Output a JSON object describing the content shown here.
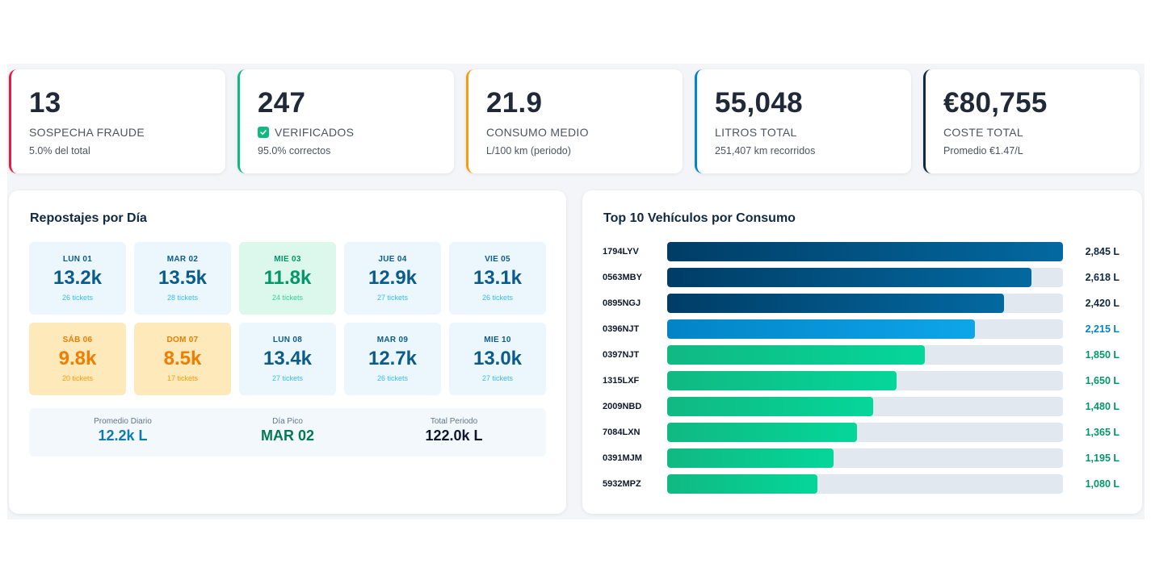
{
  "kpis": [
    {
      "value": "13",
      "label": "SOSPECHA FRAUDE",
      "sub": "5.0% del total",
      "color": "#e11d48",
      "check": false
    },
    {
      "value": "247",
      "label": "VERIFICADOS",
      "sub": "95.0% correctos",
      "color": "#10b981",
      "check": true
    },
    {
      "value": "21.9",
      "label": "CONSUMO MEDIO",
      "sub": "L/100 km (periodo)",
      "color": "#f59e0b",
      "check": false
    },
    {
      "value": "55,048",
      "label": "LITROS TOTAL",
      "sub": "251,407 km recorridos",
      "color": "#0284c7",
      "check": false
    },
    {
      "value": "€80,755",
      "label": "COSTE TOTAL",
      "sub": "Promedio €1.47/L",
      "color": "#0f2942",
      "check": false
    }
  ],
  "daily": {
    "title": "Repostajes por Día",
    "days": [
      {
        "name": "LUN 01",
        "value": "13.2k",
        "tickets": "26 tickets",
        "tone": "blue"
      },
      {
        "name": "MAR 02",
        "value": "13.5k",
        "tickets": "28 tickets",
        "tone": "blue"
      },
      {
        "name": "MIE 03",
        "value": "11.8k",
        "tickets": "24 tickets",
        "tone": "green"
      },
      {
        "name": "JUE 04",
        "value": "12.9k",
        "tickets": "27 tickets",
        "tone": "blue"
      },
      {
        "name": "VIE 05",
        "value": "13.1k",
        "tickets": "26 tickets",
        "tone": "blue"
      },
      {
        "name": "SÁB 06",
        "value": "9.8k",
        "tickets": "20 tickets",
        "tone": "orange"
      },
      {
        "name": "DOM 07",
        "value": "8.5k",
        "tickets": "17 tickets",
        "tone": "orange"
      },
      {
        "name": "LUN 08",
        "value": "13.4k",
        "tickets": "27 tickets",
        "tone": "blue"
      },
      {
        "name": "MAR 09",
        "value": "12.7k",
        "tickets": "26 tickets",
        "tone": "blue"
      },
      {
        "name": "MIE 10",
        "value": "13.0k",
        "tickets": "27 tickets",
        "tone": "blue"
      }
    ],
    "summary": [
      {
        "label": "Promedio Diario",
        "value": "12.2k L",
        "color": "#0c7bb3"
      },
      {
        "label": "Día Pico",
        "value": "MAR 02",
        "color": "#047857"
      },
      {
        "label": "Total Periodo",
        "value": "122.0k L",
        "color": "#0f172a"
      }
    ]
  },
  "vehicles": {
    "title": "Top 10 Vehículos por Consumo",
    "max": 2845,
    "rows": [
      {
        "plate": "1794LYV",
        "liters": 2845,
        "label": "2,845 L",
        "tone": "navy"
      },
      {
        "plate": "0563MBY",
        "liters": 2618,
        "label": "2,618 L",
        "tone": "navy"
      },
      {
        "plate": "0895NGJ",
        "liters": 2420,
        "label": "2,420 L",
        "tone": "navy"
      },
      {
        "plate": "0396NJT",
        "liters": 2215,
        "label": "2,215 L",
        "tone": "blue"
      },
      {
        "plate": "0397NJT",
        "liters": 1850,
        "label": "1,850 L",
        "tone": "green"
      },
      {
        "plate": "1315LXF",
        "liters": 1650,
        "label": "1,650 L",
        "tone": "green"
      },
      {
        "plate": "2009NBD",
        "liters": 1480,
        "label": "1,480 L",
        "tone": "green"
      },
      {
        "plate": "7084LXN",
        "liters": 1365,
        "label": "1,365 L",
        "tone": "green"
      },
      {
        "plate": "0391MJM",
        "liters": 1195,
        "label": "1,195 L",
        "tone": "green"
      },
      {
        "plate": "5932MPZ",
        "liters": 1080,
        "label": "1,080 L",
        "tone": "green"
      }
    ],
    "tone_colors": {
      "navy": {
        "from": "#003d66",
        "to": "#0369a1",
        "text": "#0f2942"
      },
      "blue": {
        "from": "#0284c7",
        "to": "#0ea5e9",
        "text": "#0284c7"
      },
      "green": {
        "from": "#10b981",
        "to": "#05d69a",
        "text": "#059669"
      }
    }
  }
}
